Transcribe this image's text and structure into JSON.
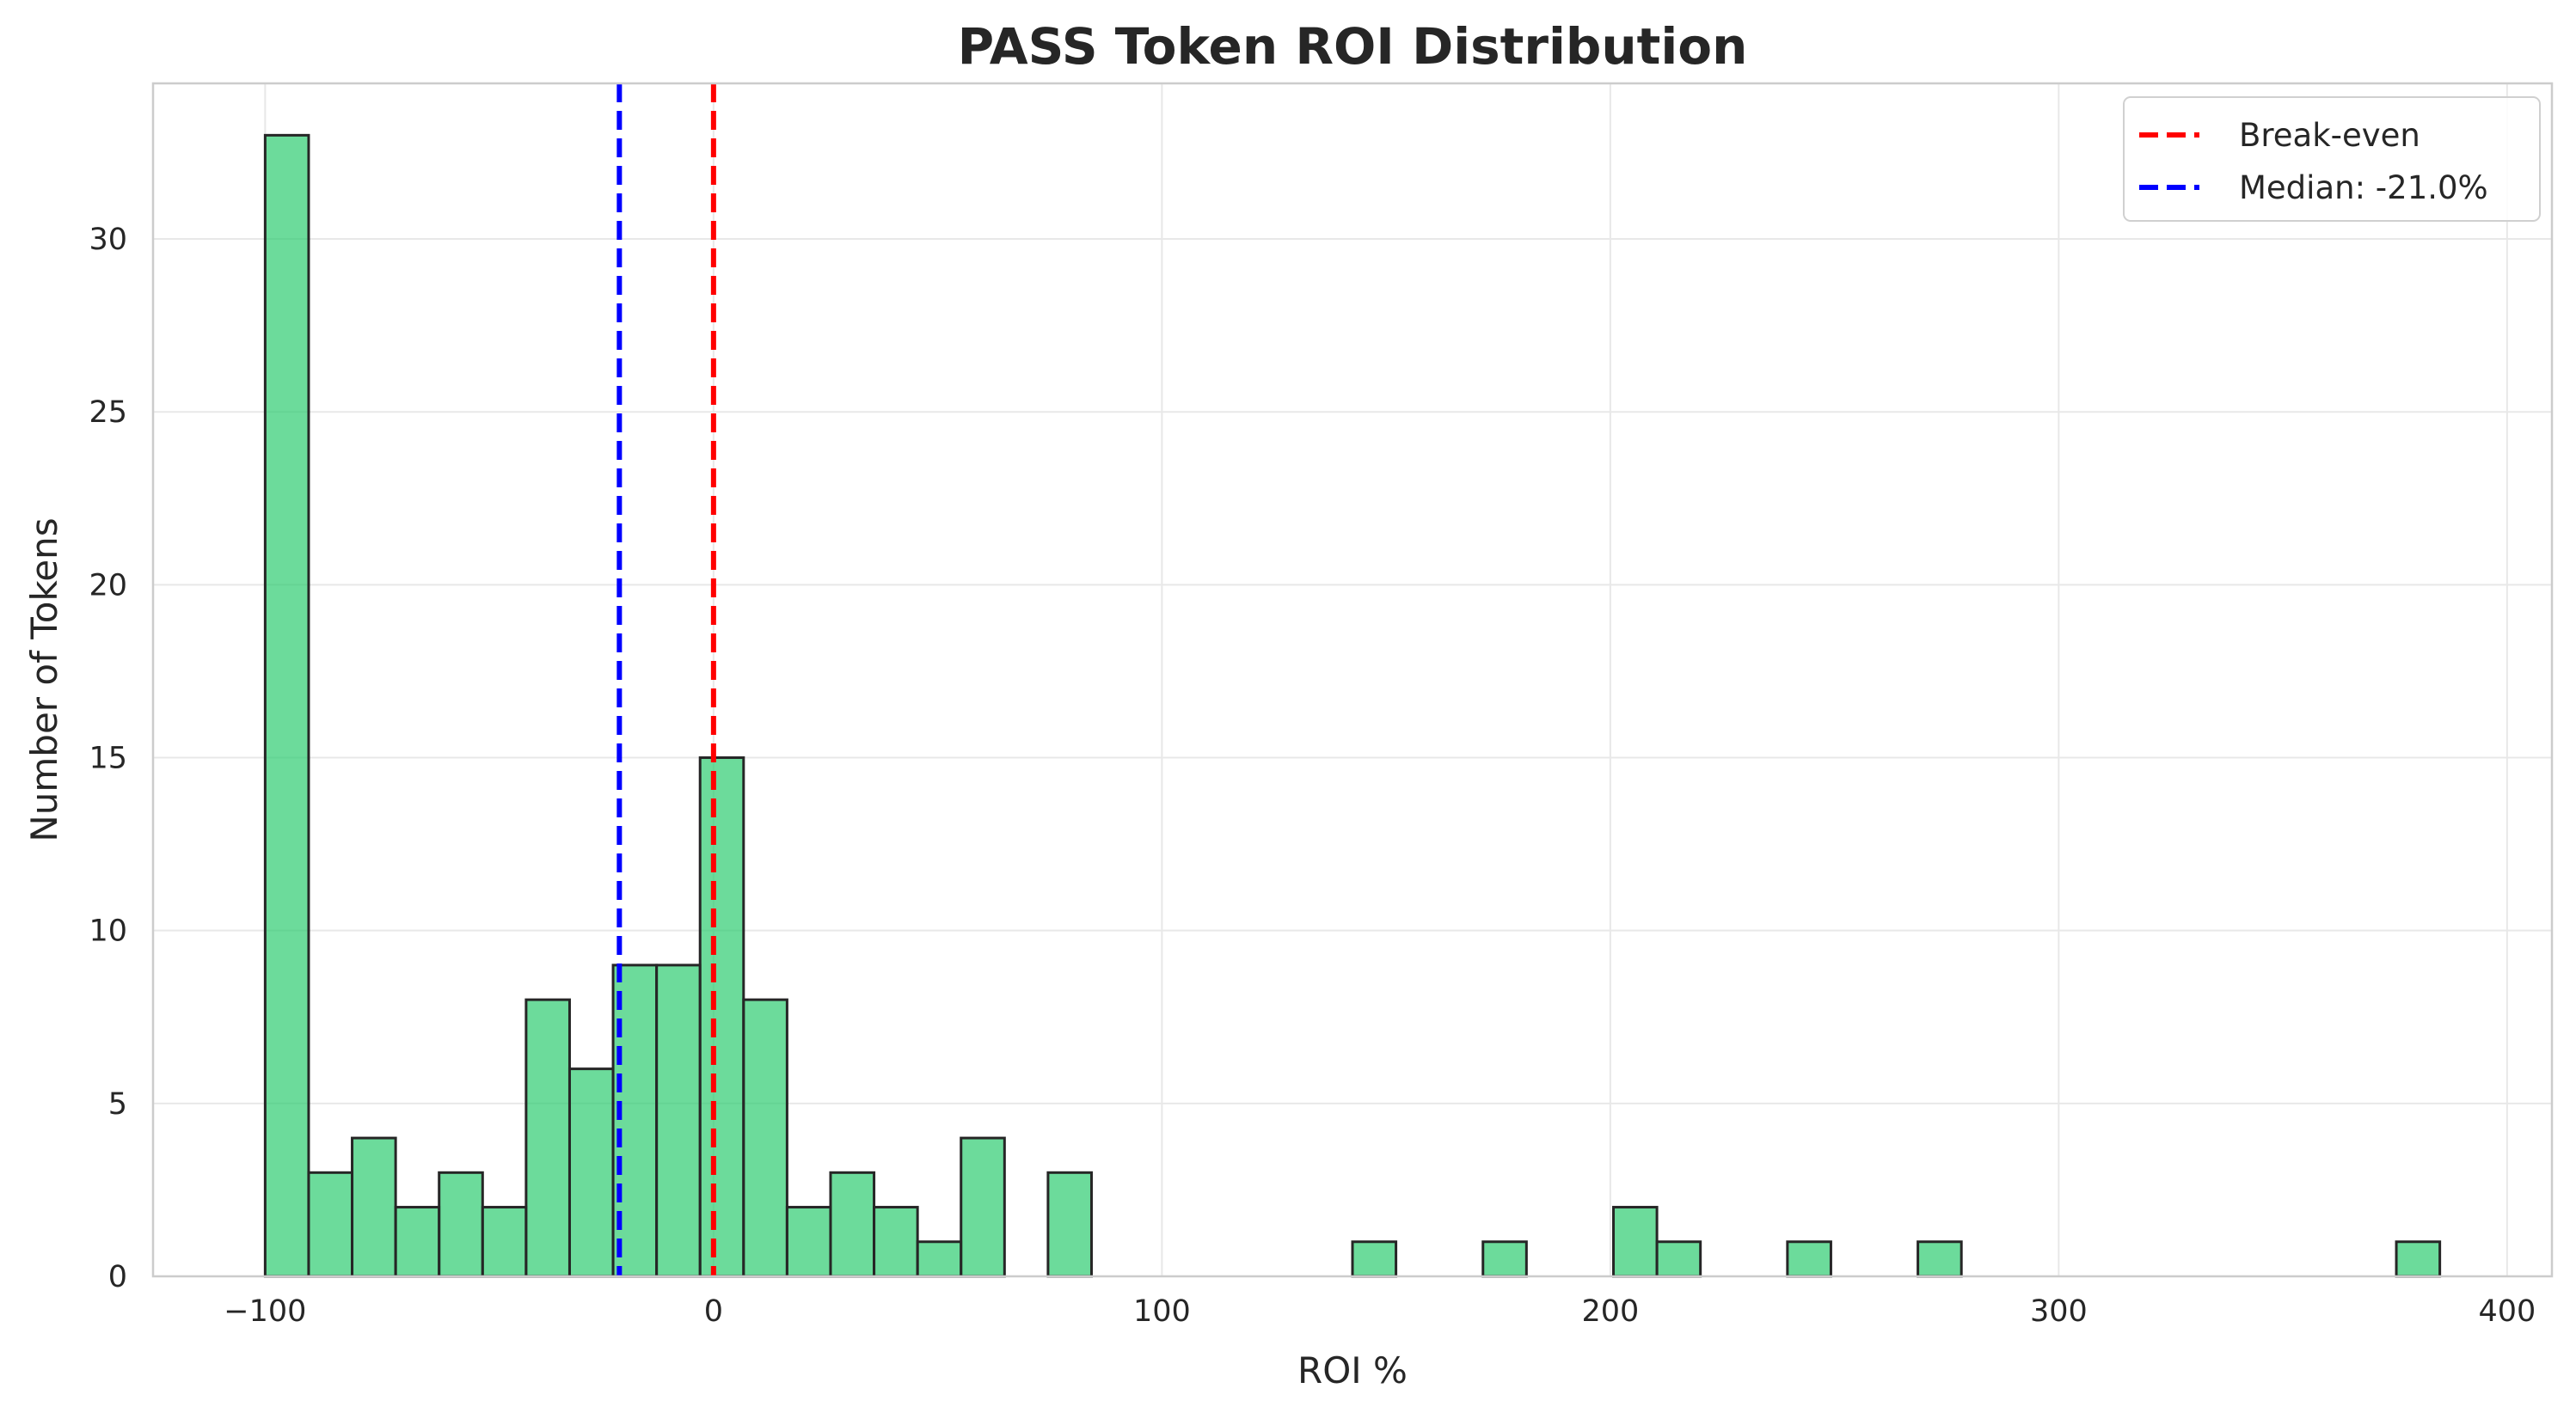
{
  "chart_data": {
    "type": "bar",
    "title": "PASS Token ROI Distribution",
    "xlabel": "ROI %",
    "ylabel": "Number of Tokens",
    "xlim": [
      -125,
      410
    ],
    "ylim": [
      0,
      34.5
    ],
    "xticks": [
      -100,
      0,
      100,
      200,
      300,
      400
    ],
    "xtick_labels": [
      "−100",
      "0",
      "100",
      "200",
      "300",
      "400"
    ],
    "yticks": [
      0,
      5,
      10,
      15,
      20,
      25,
      30
    ],
    "yticks_labels": [
      "0",
      "5",
      "10",
      "15",
      "20",
      "25",
      "30"
    ],
    "grid": true,
    "bar_color": "#2ecc71",
    "bar_edge_color": "#262626",
    "bins": [
      {
        "x0": -100.0,
        "x1": -90.3,
        "count": 33
      },
      {
        "x0": -90.3,
        "x1": -80.6,
        "count": 3
      },
      {
        "x0": -80.6,
        "x1": -70.9,
        "count": 4
      },
      {
        "x0": -70.9,
        "x1": -61.2,
        "count": 2
      },
      {
        "x0": -61.2,
        "x1": -51.5,
        "count": 3
      },
      {
        "x0": -51.5,
        "x1": -41.8,
        "count": 2
      },
      {
        "x0": -41.8,
        "x1": -32.1,
        "count": 8
      },
      {
        "x0": -32.1,
        "x1": -22.4,
        "count": 6
      },
      {
        "x0": -22.4,
        "x1": -12.7,
        "count": 9
      },
      {
        "x0": -12.7,
        "x1": -3.0,
        "count": 9
      },
      {
        "x0": -3.0,
        "x1": 6.7,
        "count": 15
      },
      {
        "x0": 6.7,
        "x1": 16.4,
        "count": 8
      },
      {
        "x0": 16.4,
        "x1": 26.1,
        "count": 2
      },
      {
        "x0": 26.1,
        "x1": 35.8,
        "count": 3
      },
      {
        "x0": 35.8,
        "x1": 45.5,
        "count": 2
      },
      {
        "x0": 45.5,
        "x1": 55.2,
        "count": 1
      },
      {
        "x0": 55.2,
        "x1": 64.9,
        "count": 4
      },
      {
        "x0": 74.6,
        "x1": 84.3,
        "count": 3
      },
      {
        "x0": 142.5,
        "x1": 152.2,
        "count": 1
      },
      {
        "x0": 171.6,
        "x1": 181.3,
        "count": 1
      },
      {
        "x0": 200.7,
        "x1": 210.4,
        "count": 2
      },
      {
        "x0": 210.4,
        "x1": 220.1,
        "count": 1
      },
      {
        "x0": 239.5,
        "x1": 249.2,
        "count": 1
      },
      {
        "x0": 268.6,
        "x1": 278.3,
        "count": 1
      },
      {
        "x0": 375.3,
        "x1": 385.0,
        "count": 1
      }
    ],
    "reference_lines": [
      {
        "name": "Break-even",
        "x": 0,
        "color": "#ff0000",
        "style": "dashed"
      },
      {
        "name": "Median: -21.0%",
        "x": -21.0,
        "color": "#0000ff",
        "style": "dashed"
      }
    ],
    "legend_position": "top-right"
  }
}
